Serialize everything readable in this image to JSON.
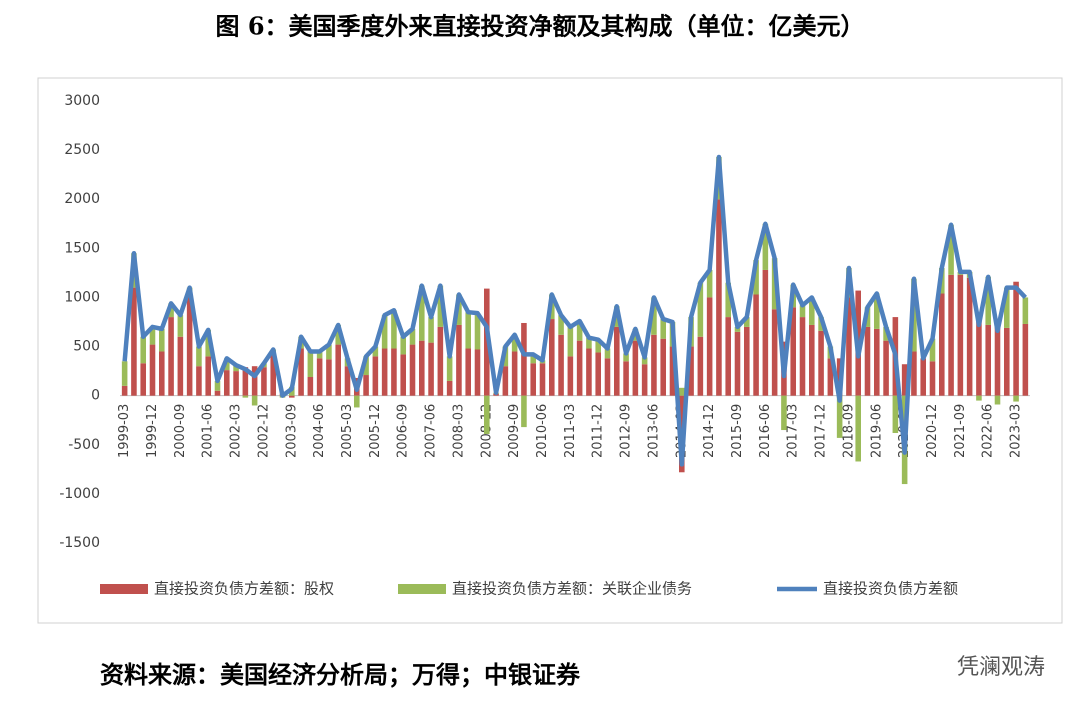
{
  "chart_data": {
    "type": "bar",
    "stacked": true,
    "title": "图 6：美国季度外来直接投资净额及其构成（单位：亿美元）",
    "source": "资料来源：美国经济分析局；万得；中银证券",
    "watermark": "凭澜观涛",
    "categories": [
      "1999-03",
      null,
      null,
      "1999-12",
      null,
      null,
      "2000-09",
      null,
      null,
      "2001-06",
      null,
      null,
      "2002-03",
      null,
      null,
      "2002-12",
      null,
      null,
      "2003-09",
      null,
      null,
      "2004-06",
      null,
      null,
      "2005-03",
      null,
      null,
      "2005-12",
      null,
      null,
      "2006-09",
      null,
      null,
      "2007-06",
      null,
      null,
      "2008-03",
      null,
      null,
      "2008-12",
      null,
      null,
      "2009-09",
      null,
      null,
      "2010-06",
      null,
      null,
      "2011-03",
      null,
      null,
      "2011-12",
      null,
      null,
      "2012-09",
      null,
      null,
      "2013-06",
      null,
      null,
      "2014-03",
      null,
      null,
      "2014-12",
      null,
      null,
      "2015-09",
      null,
      null,
      "2016-06",
      null,
      null,
      "2017-03",
      null,
      null,
      "2017-12",
      null,
      null,
      "2018-09",
      null,
      null,
      "2019-06",
      null,
      null,
      "2020-03",
      null,
      null,
      "2020-12",
      null,
      null,
      "2021-09",
      null,
      null,
      "2022-06",
      null,
      null,
      "2023-03",
      null
    ],
    "series": [
      {
        "name": "直接投资负债方差额：股权",
        "color": "#c0504d",
        "type": "bar",
        "values": [
          100,
          1100,
          330,
          520,
          450,
          800,
          600,
          1000,
          300,
          400,
          50,
          260,
          250,
          290,
          300,
          290,
          420,
          20,
          -20,
          480,
          190,
          380,
          370,
          520,
          300,
          180,
          210,
          400,
          480,
          480,
          420,
          520,
          560,
          540,
          700,
          150,
          720,
          480,
          470,
          1090,
          20,
          300,
          450,
          740,
          330,
          330,
          780,
          620,
          400,
          560,
          480,
          440,
          380,
          700,
          350,
          560,
          320,
          620,
          580,
          500,
          -780,
          500,
          600,
          1000,
          2000,
          800,
          650,
          700,
          1030,
          1280,
          880,
          550,
          900,
          800,
          720,
          660,
          380,
          380,
          1000,
          1070,
          700,
          680,
          560,
          800,
          320,
          450,
          380,
          350,
          1040,
          1230,
          1230,
          1200,
          770,
          720,
          750,
          690,
          1160,
          730
        ]
      },
      {
        "name": "直接投资负债方差额：关联企业债务",
        "color": "#9bbb59",
        "type": "bar",
        "values": [
          250,
          350,
          270,
          180,
          230,
          140,
          220,
          100,
          200,
          270,
          100,
          120,
          60,
          -20,
          -100,
          40,
          50,
          -20,
          90,
          120,
          260,
          70,
          150,
          200,
          80,
          -120,
          190,
          100,
          340,
          390,
          180,
          160,
          560,
          260,
          420,
          250,
          310,
          370,
          370,
          -390,
          10,
          200,
          170,
          -320,
          90,
          30,
          250,
          200,
          300,
          200,
          110,
          130,
          100,
          210,
          80,
          120,
          70,
          380,
          200,
          250,
          80,
          300,
          550,
          280,
          430,
          350,
          50,
          100,
          350,
          470,
          520,
          -350,
          230,
          120,
          280,
          140,
          120,
          -430,
          300,
          -670,
          200,
          360,
          140,
          -380,
          -900,
          740,
          0,
          230,
          260,
          510,
          30,
          60,
          -50,
          490,
          -90,
          410,
          -60,
          270
        ]
      },
      {
        "name": "直接投资负债方差额",
        "color": "#4f81bd",
        "type": "line",
        "values": [
          350,
          1450,
          600,
          700,
          680,
          940,
          820,
          1100,
          500,
          670,
          150,
          380,
          310,
          270,
          200,
          330,
          470,
          0,
          70,
          600,
          450,
          450,
          520,
          720,
          380,
          60,
          400,
          500,
          820,
          870,
          600,
          680,
          1120,
          800,
          1120,
          400,
          1030,
          850,
          840,
          700,
          30,
          500,
          620,
          420,
          420,
          360,
          1030,
          820,
          700,
          760,
          590,
          570,
          480,
          910,
          430,
          680,
          390,
          1000,
          780,
          750,
          -700,
          800,
          1150,
          1280,
          2430,
          1150,
          700,
          800,
          1380,
          1750,
          1400,
          200,
          1130,
          920,
          1000,
          800,
          500,
          -50,
          1300,
          400,
          900,
          1040,
          700,
          420,
          -580,
          1190,
          380,
          580,
          1300,
          1740,
          1260,
          1260,
          720,
          1210,
          660,
          1100,
          1100,
          1000
        ]
      }
    ],
    "ylim": [
      -1500,
      3000
    ],
    "yticks": [
      -1500,
      -1000,
      -500,
      0,
      500,
      1000,
      1500,
      2000,
      2500,
      3000
    ],
    "grid": false,
    "legend": "bottom"
  }
}
